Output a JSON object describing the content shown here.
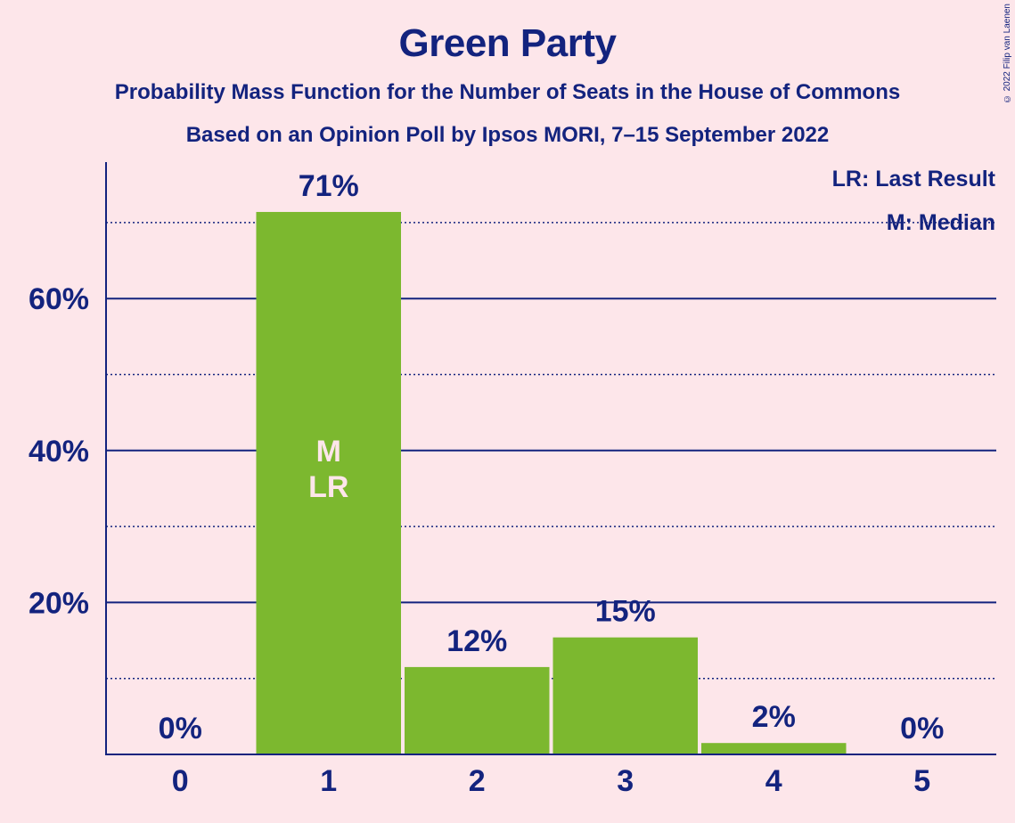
{
  "title": "Green Party",
  "subtitle1": "Probability Mass Function for the Number of Seats in the House of Commons",
  "subtitle2": "Based on an Opinion Poll by Ipsos MORI, 7–15 September 2022",
  "copyright": "© 2022 Filip van Laenen",
  "legend": {
    "last_result": "LR: Last Result",
    "median": "M: Median"
  },
  "colors": {
    "background": "#fde6ea",
    "bar": "#7cb82f",
    "text": "#13237e",
    "bar_label_inside": "#fde6ea"
  },
  "chart_data": {
    "type": "bar",
    "categories": [
      "0",
      "1",
      "2",
      "3",
      "4",
      "5"
    ],
    "values": [
      0,
      71.4,
      11.5,
      15.4,
      1.5,
      0
    ],
    "value_labels": [
      "0%",
      "71%",
      "12%",
      "15%",
      "2%",
      "0%"
    ],
    "inside_labels": [
      "",
      "M\nLR",
      "",
      "",
      "",
      ""
    ],
    "y_ticks": [
      20,
      40,
      60
    ],
    "y_tick_labels": [
      "20%",
      "40%",
      "60%"
    ],
    "y_minor_ticks": [
      10,
      30,
      50,
      70
    ],
    "ylim": [
      0,
      78
    ],
    "grid": true,
    "legend_position": "top-right"
  }
}
